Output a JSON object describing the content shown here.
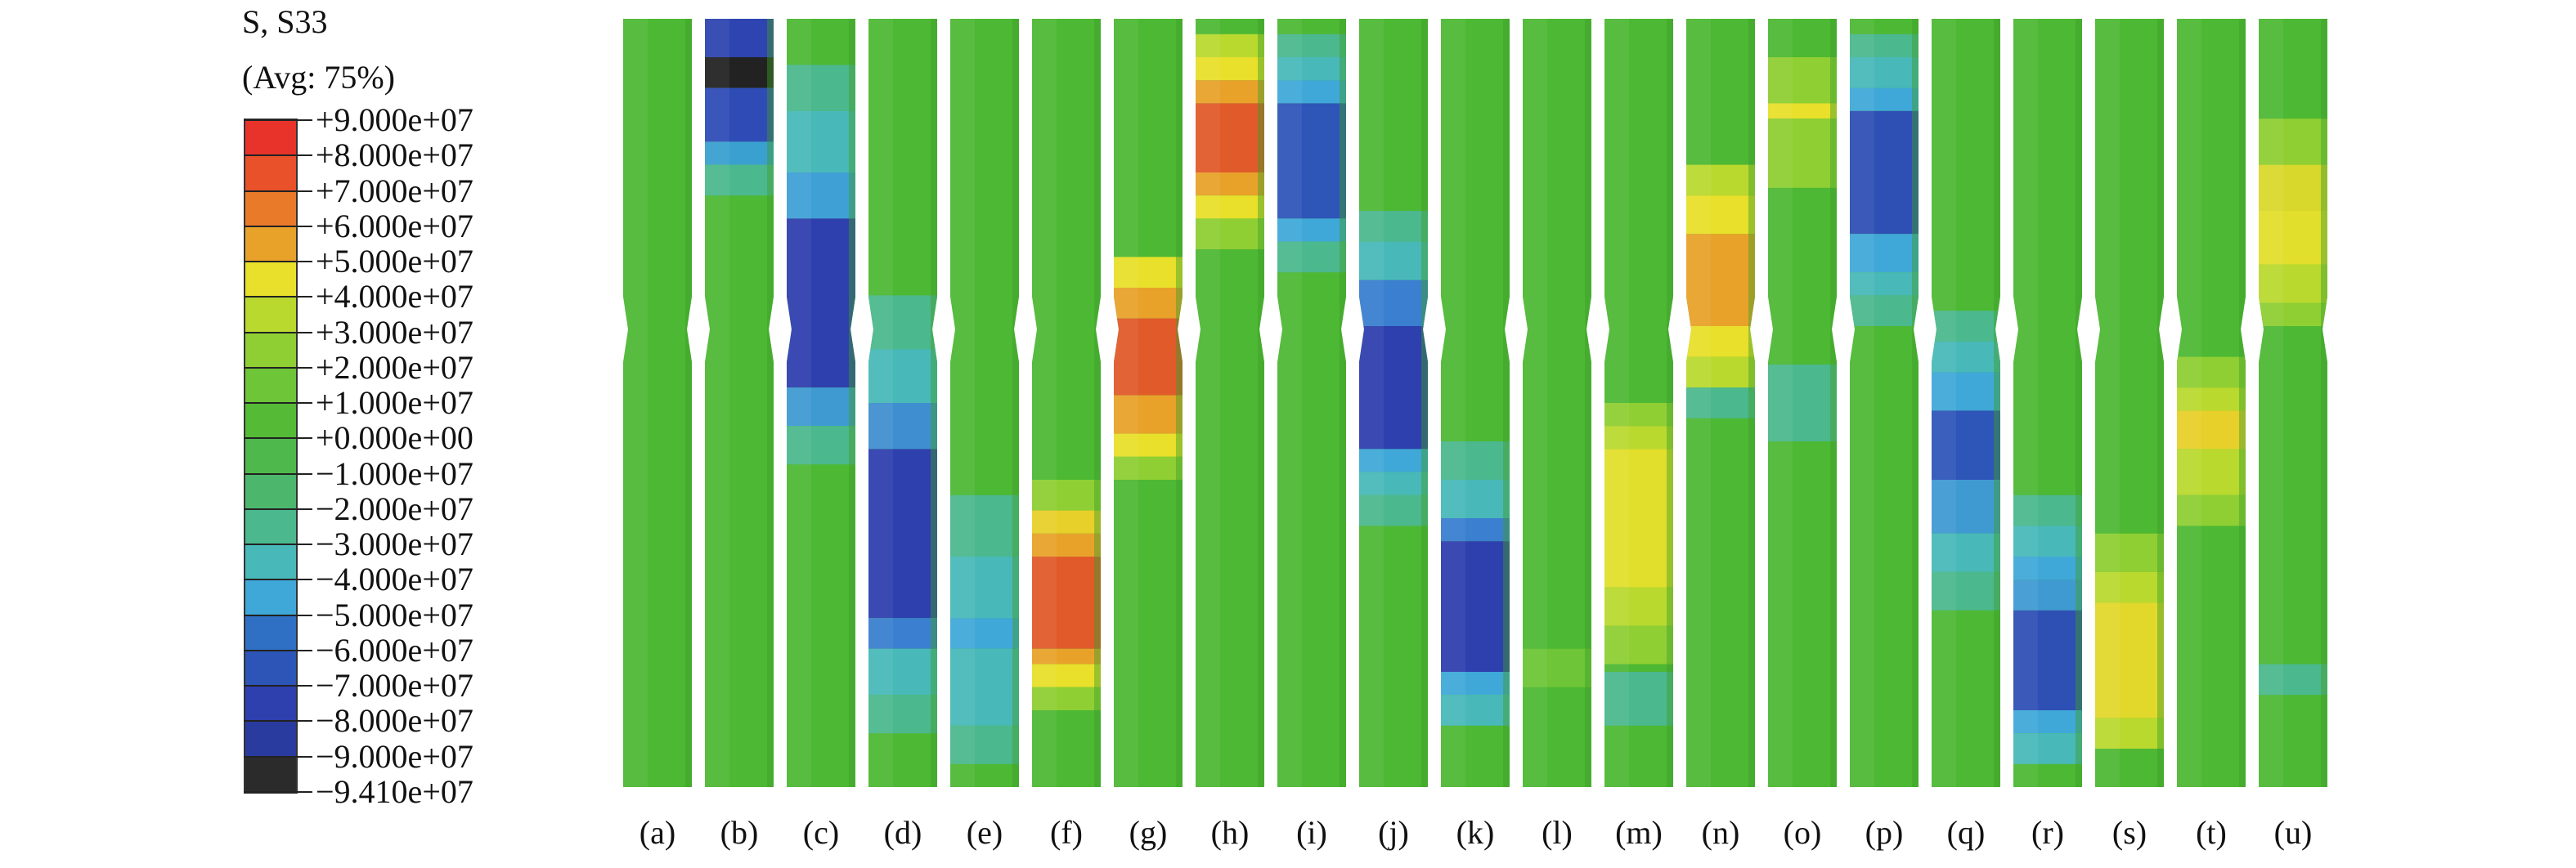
{
  "legend": {
    "title": "S, S33",
    "subtitle": "(Avg: 75%)",
    "ticks": [
      "+9.000e+07",
      "+8.000e+07",
      "+7.000e+07",
      "+6.000e+07",
      "+5.000e+07",
      "+4.000e+07",
      "+3.000e+07",
      "+2.000e+07",
      "+1.000e+07",
      "+0.000e+00",
      "−1.000e+07",
      "−2.000e+07",
      "−3.000e+07",
      "−4.000e+07",
      "−5.000e+07",
      "−6.000e+07",
      "−7.000e+07",
      "−8.000e+07",
      "−9.000e+07",
      "−9.410e+07"
    ],
    "colors": [
      "#e8332a",
      "#e8512a",
      "#e87a2a",
      "#e8a22a",
      "#e8e02a",
      "#b9d92f",
      "#8fcf33",
      "#6dc537",
      "#55bb36",
      "#4eb84c",
      "#4cb76c",
      "#4bb88e",
      "#48b9b8",
      "#3fa8d8",
      "#2f6fc4",
      "#2d55b8",
      "#2e3fae",
      "#2a3b9f",
      "#2b2b2b"
    ]
  },
  "columns": [
    {
      "label": "(a)",
      "profile": []
    },
    {
      "label": "(b)",
      "profile": [
        [
          0.0,
          0.05,
          "#2e44b0"
        ],
        [
          0.05,
          0.09,
          "#222222"
        ],
        [
          0.09,
          0.16,
          "#2f4cb6"
        ],
        [
          0.16,
          0.19,
          "#3aa0d0"
        ],
        [
          0.19,
          0.23,
          "#4bb88e"
        ]
      ]
    },
    {
      "label": "(c)",
      "profile": [
        [
          0.06,
          0.12,
          "#4bb88e"
        ],
        [
          0.12,
          0.2,
          "#48b9b8"
        ],
        [
          0.2,
          0.26,
          "#3fa0d6"
        ],
        [
          0.26,
          0.48,
          "#2e3fae"
        ],
        [
          0.48,
          0.53,
          "#3f9ad2"
        ],
        [
          0.53,
          0.58,
          "#4bb88e"
        ]
      ]
    },
    {
      "label": "(d)",
      "profile": [
        [
          0.36,
          0.43,
          "#4bb88e"
        ],
        [
          0.43,
          0.5,
          "#48b9b8"
        ],
        [
          0.5,
          0.56,
          "#3f8fd0"
        ],
        [
          0.56,
          0.78,
          "#2e3fae"
        ],
        [
          0.78,
          0.82,
          "#3a7fd0"
        ],
        [
          0.82,
          0.88,
          "#48b9b8"
        ],
        [
          0.88,
          0.93,
          "#4bb88e"
        ]
      ]
    },
    {
      "label": "(e)",
      "profile": [
        [
          0.62,
          0.7,
          "#4bb88e"
        ],
        [
          0.7,
          0.78,
          "#48b9b8"
        ],
        [
          0.78,
          0.82,
          "#3fa8d8"
        ],
        [
          0.82,
          0.92,
          "#48b9b8"
        ],
        [
          0.92,
          0.97,
          "#4bb88e"
        ]
      ]
    },
    {
      "label": "(f)",
      "profile": [
        [
          0.6,
          0.64,
          "#8fcf33"
        ],
        [
          0.64,
          0.67,
          "#e8d02a"
        ],
        [
          0.67,
          0.7,
          "#e8a22a"
        ],
        [
          0.7,
          0.82,
          "#e05a2a"
        ],
        [
          0.82,
          0.84,
          "#e8a22a"
        ],
        [
          0.84,
          0.87,
          "#e8e02a"
        ],
        [
          0.87,
          0.9,
          "#8fcf33"
        ]
      ]
    },
    {
      "label": "(g)",
      "profile": [
        [
          0.31,
          0.35,
          "#e8e02a"
        ],
        [
          0.35,
          0.39,
          "#e8a22a"
        ],
        [
          0.39,
          0.49,
          "#e05a2a"
        ],
        [
          0.49,
          0.54,
          "#e8a22a"
        ],
        [
          0.54,
          0.57,
          "#e8e02a"
        ],
        [
          0.57,
          0.6,
          "#8fcf33"
        ]
      ]
    },
    {
      "label": "(h)",
      "profile": [
        [
          0.02,
          0.05,
          "#b9d92f"
        ],
        [
          0.05,
          0.08,
          "#e8e02a"
        ],
        [
          0.08,
          0.11,
          "#e8a22a"
        ],
        [
          0.11,
          0.2,
          "#e05a2a"
        ],
        [
          0.2,
          0.23,
          "#e8a22a"
        ],
        [
          0.23,
          0.26,
          "#e8e02a"
        ],
        [
          0.26,
          0.3,
          "#8fcf33"
        ]
      ]
    },
    {
      "label": "(i)",
      "profile": [
        [
          0.02,
          0.05,
          "#4bb88e"
        ],
        [
          0.05,
          0.08,
          "#48b9b8"
        ],
        [
          0.08,
          0.11,
          "#3fa8d8"
        ],
        [
          0.11,
          0.26,
          "#2e55b8"
        ],
        [
          0.26,
          0.29,
          "#3fa8d8"
        ],
        [
          0.29,
          0.33,
          "#4bb88e"
        ]
      ]
    },
    {
      "label": "(j)",
      "profile": [
        [
          0.25,
          0.29,
          "#4bb88e"
        ],
        [
          0.29,
          0.34,
          "#48b9b8"
        ],
        [
          0.34,
          0.4,
          "#3a7fd0"
        ],
        [
          0.4,
          0.56,
          "#2e3fae"
        ],
        [
          0.56,
          0.59,
          "#3fa8d8"
        ],
        [
          0.59,
          0.62,
          "#48b9b8"
        ],
        [
          0.62,
          0.66,
          "#4bb88e"
        ]
      ]
    },
    {
      "label": "(k)",
      "profile": [
        [
          0.55,
          0.6,
          "#4bb88e"
        ],
        [
          0.6,
          0.65,
          "#48b9b8"
        ],
        [
          0.65,
          0.68,
          "#3a7fd0"
        ],
        [
          0.68,
          0.85,
          "#2e3fae"
        ],
        [
          0.85,
          0.88,
          "#3fa8d8"
        ],
        [
          0.88,
          0.92,
          "#48b9b8"
        ]
      ]
    },
    {
      "label": "(l)",
      "profile": [
        [
          0.82,
          0.87,
          "#6dc537"
        ]
      ]
    },
    {
      "label": "(m)",
      "profile": [
        [
          0.5,
          0.53,
          "#8fcf33"
        ],
        [
          0.53,
          0.56,
          "#b9d92f"
        ],
        [
          0.56,
          0.74,
          "#e2df2c"
        ],
        [
          0.74,
          0.79,
          "#b9d92f"
        ],
        [
          0.79,
          0.84,
          "#8fcf33"
        ],
        [
          0.85,
          0.92,
          "#4bb88e"
        ]
      ]
    },
    {
      "label": "(n)",
      "profile": [
        [
          0.19,
          0.23,
          "#b9d92f"
        ],
        [
          0.23,
          0.28,
          "#e8e02a"
        ],
        [
          0.28,
          0.4,
          "#e8a22a"
        ],
        [
          0.4,
          0.44,
          "#e8e02a"
        ],
        [
          0.44,
          0.48,
          "#b9d92f"
        ],
        [
          0.48,
          0.52,
          "#4bb88e"
        ]
      ]
    },
    {
      "label": "(o)",
      "profile": [
        [
          0.05,
          0.11,
          "#8fcf33"
        ],
        [
          0.11,
          0.13,
          "#e8e02a"
        ],
        [
          0.13,
          0.22,
          "#8fcf33"
        ],
        [
          0.45,
          0.55,
          "#4bb88e"
        ]
      ]
    },
    {
      "label": "(p)",
      "profile": [
        [
          0.02,
          0.05,
          "#4bb88e"
        ],
        [
          0.05,
          0.09,
          "#48b9b8"
        ],
        [
          0.09,
          0.12,
          "#3fa8d8"
        ],
        [
          0.12,
          0.28,
          "#2e4fb4"
        ],
        [
          0.28,
          0.33,
          "#3fa8d8"
        ],
        [
          0.33,
          0.36,
          "#48b9b8"
        ],
        [
          0.36,
          0.4,
          "#4bb88e"
        ]
      ]
    },
    {
      "label": "(q)",
      "profile": [
        [
          0.38,
          0.42,
          "#4bb88e"
        ],
        [
          0.42,
          0.46,
          "#48b9b8"
        ],
        [
          0.46,
          0.51,
          "#3fa8d8"
        ],
        [
          0.51,
          0.6,
          "#2e55b8"
        ],
        [
          0.6,
          0.67,
          "#3f9ad2"
        ],
        [
          0.67,
          0.72,
          "#48b9b8"
        ],
        [
          0.72,
          0.77,
          "#4bb88e"
        ]
      ]
    },
    {
      "label": "(r)",
      "profile": [
        [
          0.62,
          0.66,
          "#4bb88e"
        ],
        [
          0.66,
          0.7,
          "#48b9b8"
        ],
        [
          0.7,
          0.73,
          "#3fa8d8"
        ],
        [
          0.73,
          0.77,
          "#3f9ad2"
        ],
        [
          0.77,
          0.9,
          "#2e4fb4"
        ],
        [
          0.9,
          0.93,
          "#3fa8d8"
        ],
        [
          0.93,
          0.97,
          "#48b9b8"
        ]
      ]
    },
    {
      "label": "(s)",
      "profile": [
        [
          0.67,
          0.72,
          "#8fcf33"
        ],
        [
          0.72,
          0.76,
          "#b9d92f"
        ],
        [
          0.76,
          0.91,
          "#e2d82c"
        ],
        [
          0.91,
          0.95,
          "#b9d92f"
        ]
      ]
    },
    {
      "label": "(t)",
      "profile": [
        [
          0.44,
          0.48,
          "#8fcf33"
        ],
        [
          0.48,
          0.51,
          "#b9d92f"
        ],
        [
          0.51,
          0.56,
          "#e8d02a"
        ],
        [
          0.56,
          0.62,
          "#b9d92f"
        ],
        [
          0.62,
          0.66,
          "#8fcf33"
        ]
      ]
    },
    {
      "label": "(u)",
      "profile": [
        [
          0.13,
          0.19,
          "#8fcf33"
        ],
        [
          0.19,
          0.25,
          "#d8d82c"
        ],
        [
          0.25,
          0.32,
          "#e2df2c"
        ],
        [
          0.32,
          0.37,
          "#b9d92f"
        ],
        [
          0.37,
          0.4,
          "#8fcf33"
        ],
        [
          0.84,
          0.88,
          "#4bb88e"
        ]
      ]
    }
  ]
}
